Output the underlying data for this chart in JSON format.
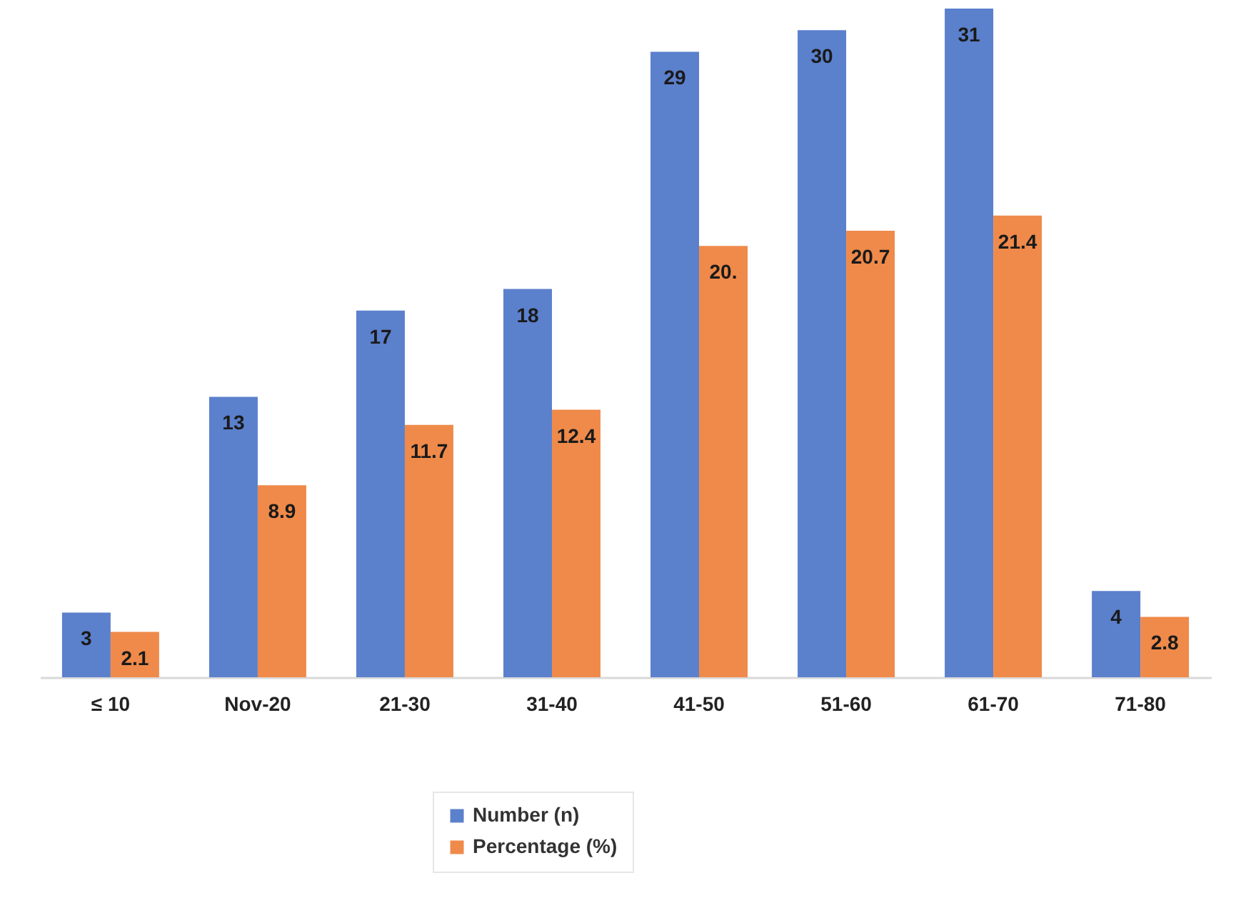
{
  "chart_data": {
    "type": "bar",
    "legend": "bottom",
    "categories": [
      "≤ 10",
      "Nov-20",
      "21-30",
      "31-40",
      "41-50",
      "51-60",
      "61-70",
      "71-80"
    ],
    "series": [
      {
        "name": "Number (n)",
        "color": "#5b80cc",
        "values": [
          3,
          13,
          17,
          18,
          29,
          30,
          31,
          4
        ],
        "value_labels": [
          "3",
          "13",
          "17",
          "18",
          "29",
          "30",
          "31",
          "4"
        ]
      },
      {
        "name": "Percentage (%)",
        "color": "#ef8a4a",
        "values": [
          2.1,
          8.9,
          11.7,
          12.4,
          20,
          20.7,
          21.4,
          2.8
        ],
        "value_labels": [
          "2.1",
          "8.9",
          "11.7",
          "12.4",
          "20.",
          "20.7",
          "21.4",
          "2.8"
        ]
      }
    ]
  }
}
